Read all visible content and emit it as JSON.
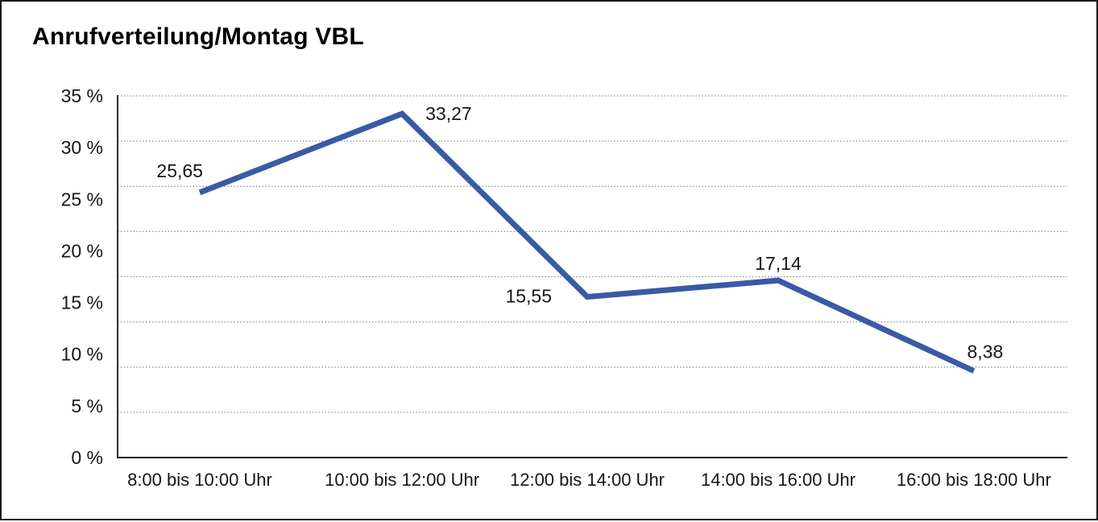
{
  "window": {
    "background": "#ffffff",
    "border_color": "#1a1a1a"
  },
  "chart_data": {
    "type": "line",
    "title": "Anrufverteilung/Montag VBL",
    "categories": [
      "8:00 bis 10:00 Uhr",
      "10:00 bis 12:00 Uhr",
      "12:00 bis 14:00 Uhr",
      "14:00 bis 16:00 Uhr",
      "16:00 bis 18:00 Uhr"
    ],
    "values": [
      25.65,
      33.27,
      15.55,
      17.14,
      8.38
    ],
    "point_labels": [
      "25,65",
      "33,27",
      "15,55",
      "17,14",
      "8,38"
    ],
    "xlabel": "",
    "ylabel": "",
    "ylim": [
      0,
      35
    ],
    "yticks": [
      {
        "value": 35,
        "label": "35 %"
      },
      {
        "value": 30,
        "label": "30 %"
      },
      {
        "value": 25,
        "label": "25 %"
      },
      {
        "value": 20,
        "label": "20 %"
      },
      {
        "value": 15,
        "label": "15 %"
      },
      {
        "value": 10,
        "label": "10 %"
      },
      {
        "value": 5,
        "label": "5 %"
      },
      {
        "value": 0,
        "label": "0 %"
      }
    ],
    "grid": "dotted horizontal, 8 equal bands",
    "legend": "none",
    "line_color": "#3A5AA6",
    "grid_color": "#8f8f8f",
    "axis_color": "#1a1a1a"
  }
}
